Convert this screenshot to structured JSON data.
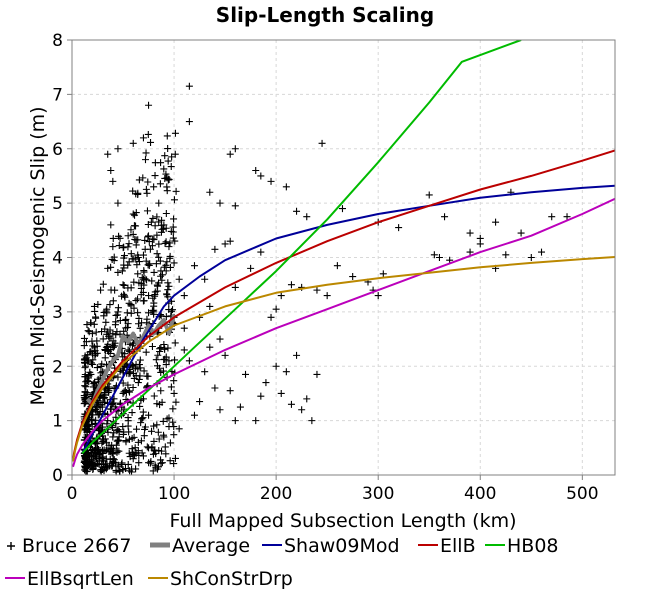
{
  "chart_data": {
    "type": "scatter",
    "title": "Slip-Length Scaling",
    "xlabel": "Full Mapped Subsection Length (km)",
    "ylabel": "Mean Mid-Seismogenic Slip (m)",
    "xlim": [
      0,
      532
    ],
    "ylim": [
      0,
      8
    ],
    "x_ticks": [
      "0",
      "100",
      "200",
      "300",
      "400",
      "500"
    ],
    "y_ticks": [
      "0",
      "1",
      "2",
      "3",
      "4",
      "5",
      "6",
      "7",
      "8"
    ],
    "grid": true,
    "legend_position": "bottom",
    "series": [
      {
        "name": "Bruce 2667",
        "kind": "scatter",
        "marker": "plus",
        "color": "#000000",
        "cluster_note": "dense cloud of 2667 points concentrated at 15-100 km length and 0.2-5 m slip",
        "points": [
          [
            75,
            6.8
          ],
          [
            115,
            7.15
          ],
          [
            115,
            6.5
          ],
          [
            160,
            6.0
          ],
          [
            155,
            5.9
          ],
          [
            245,
            6.1
          ],
          [
            180,
            5.6
          ],
          [
            185,
            5.5
          ],
          [
            195,
            5.4
          ],
          [
            210,
            5.3
          ],
          [
            135,
            5.2
          ],
          [
            145,
            5.0
          ],
          [
            160,
            4.95
          ],
          [
            230,
            4.75
          ],
          [
            220,
            4.85
          ],
          [
            265,
            4.9
          ],
          [
            300,
            4.65
          ],
          [
            320,
            4.55
          ],
          [
            350,
            5.15
          ],
          [
            430,
            5.2
          ],
          [
            365,
            4.75
          ],
          [
            390,
            4.45
          ],
          [
            415,
            4.65
          ],
          [
            440,
            4.45
          ],
          [
            470,
            4.75
          ],
          [
            485,
            4.75
          ],
          [
            400,
            4.35
          ],
          [
            415,
            3.8
          ],
          [
            425,
            4.05
          ],
          [
            450,
            4.0
          ],
          [
            460,
            4.1
          ],
          [
            355,
            4.05
          ],
          [
            360,
            4.0
          ],
          [
            390,
            4.1
          ],
          [
            400,
            4.25
          ],
          [
            370,
            3.95
          ],
          [
            275,
            3.65
          ],
          [
            290,
            3.55
          ],
          [
            295,
            3.4
          ],
          [
            300,
            3.3
          ],
          [
            305,
            3.7
          ],
          [
            260,
            3.85
          ],
          [
            225,
            3.45
          ],
          [
            240,
            3.4
          ],
          [
            250,
            3.3
          ],
          [
            200,
            3.05
          ],
          [
            205,
            3.3
          ],
          [
            195,
            2.9
          ],
          [
            215,
            3.5
          ],
          [
            185,
            4.1
          ],
          [
            175,
            3.8
          ],
          [
            155,
            4.3
          ],
          [
            150,
            4.25
          ],
          [
            140,
            4.15
          ],
          [
            130,
            3.6
          ],
          [
            120,
            3.85
          ],
          [
            160,
            3.45
          ],
          [
            145,
            2.5
          ],
          [
            135,
            2.35
          ],
          [
            150,
            2.2
          ],
          [
            130,
            1.9
          ],
          [
            140,
            1.6
          ],
          [
            155,
            1.55
          ],
          [
            165,
            1.25
          ],
          [
            160,
            1.0
          ],
          [
            170,
            1.85
          ],
          [
            145,
            1.2
          ],
          [
            125,
            1.35
          ],
          [
            120,
            1.1
          ],
          [
            110,
            2.3
          ],
          [
            115,
            2.1
          ],
          [
            100,
            1.5
          ],
          [
            95,
            1.05
          ],
          [
            105,
            0.85
          ],
          [
            90,
            0.7
          ],
          [
            85,
            0.45
          ],
          [
            75,
            0.5
          ],
          [
            70,
            0.35
          ],
          [
            60,
            0.3
          ],
          [
            50,
            0.1
          ],
          [
            40,
            0.25
          ],
          [
            30,
            0.3
          ],
          [
            25,
            0.5
          ],
          [
            18,
            0.6
          ],
          [
            15,
            0.9
          ],
          [
            20,
            1.2
          ],
          [
            25,
            1.5
          ],
          [
            30,
            1.9
          ],
          [
            35,
            2.3
          ],
          [
            20,
            2.6
          ],
          [
            22,
            3.1
          ],
          [
            28,
            3.4
          ],
          [
            35,
            3.8
          ],
          [
            40,
            4.2
          ],
          [
            38,
            4.6
          ],
          [
            45,
            5.0
          ],
          [
            40,
            5.4
          ],
          [
            38,
            5.6
          ],
          [
            35,
            5.9
          ],
          [
            45,
            6.0
          ],
          [
            60,
            6.1
          ],
          [
            70,
            6.2
          ],
          [
            72,
            5.8
          ],
          [
            80,
            5.3
          ],
          [
            85,
            5.0
          ],
          [
            90,
            4.6
          ],
          [
            95,
            4.2
          ],
          [
            100,
            3.9
          ],
          [
            105,
            3.6
          ],
          [
            110,
            3.3
          ],
          [
            60,
            4.8
          ],
          [
            55,
            4.4
          ],
          [
            65,
            4.0
          ],
          [
            70,
            3.6
          ],
          [
            75,
            3.3
          ],
          [
            80,
            3.0
          ],
          [
            85,
            2.7
          ],
          [
            90,
            2.4
          ],
          [
            95,
            2.1
          ],
          [
            50,
            3.5
          ],
          [
            45,
            3.0
          ],
          [
            40,
            2.6
          ],
          [
            55,
            2.3
          ],
          [
            60,
            2.0
          ],
          [
            65,
            1.7
          ],
          [
            70,
            1.4
          ],
          [
            75,
            1.1
          ],
          [
            80,
            0.9
          ],
          [
            50,
            1.5
          ],
          [
            45,
            1.8
          ],
          [
            35,
            1.0
          ],
          [
            40,
            0.7
          ],
          [
            30,
            0.8
          ],
          [
            55,
            0.9
          ],
          [
            65,
            0.6
          ],
          [
            100,
            2.9
          ],
          [
            110,
            2.7
          ],
          [
            125,
            2.9
          ],
          [
            135,
            3.1
          ],
          [
            205,
            1.5
          ],
          [
            215,
            1.3
          ],
          [
            225,
            1.2
          ],
          [
            230,
            1.4
          ],
          [
            210,
            1.9
          ],
          [
            200,
            2.0
          ],
          [
            220,
            2.2
          ],
          [
            235,
            1.0
          ],
          [
            240,
            1.85
          ],
          [
            185,
            1.45
          ],
          [
            180,
            1.0
          ],
          [
            190,
            1.7
          ]
        ]
      },
      {
        "name": "Average",
        "kind": "line",
        "color": "#808080",
        "points": [
          [
            15,
            1.4
          ],
          [
            20,
            1.3
          ],
          [
            25,
            1.55
          ],
          [
            30,
            1.75
          ],
          [
            35,
            1.95
          ],
          [
            40,
            2.1
          ],
          [
            45,
            2.2
          ],
          [
            50,
            2.55
          ],
          [
            55,
            2.45
          ],
          [
            60,
            2.6
          ],
          [
            65,
            2.4
          ],
          [
            70,
            2.55
          ],
          [
            75,
            2.75
          ],
          [
            80,
            2.6
          ],
          [
            85,
            2.75
          ],
          [
            90,
            2.85
          ],
          [
            95,
            2.6
          ],
          [
            100,
            2.95
          ]
        ]
      },
      {
        "name": "Shaw09Mod",
        "kind": "line",
        "color": "#000099",
        "points": [
          [
            10,
            0.4
          ],
          [
            20,
            0.75
          ],
          [
            30,
            1.1
          ],
          [
            40,
            1.45
          ],
          [
            50,
            1.8
          ],
          [
            60,
            2.15
          ],
          [
            70,
            2.5
          ],
          [
            80,
            2.8
          ],
          [
            90,
            3.1
          ],
          [
            100,
            3.3
          ],
          [
            125,
            3.65
          ],
          [
            150,
            3.95
          ],
          [
            175,
            4.15
          ],
          [
            200,
            4.35
          ],
          [
            250,
            4.6
          ],
          [
            300,
            4.8
          ],
          [
            350,
            4.95
          ],
          [
            400,
            5.1
          ],
          [
            450,
            5.2
          ],
          [
            500,
            5.28
          ],
          [
            532,
            5.32
          ]
        ]
      },
      {
        "name": "EllB",
        "kind": "line",
        "color": "#bb0000",
        "points": [
          [
            1,
            0.25
          ],
          [
            2,
            0.4
          ],
          [
            5,
            0.65
          ],
          [
            10,
            0.95
          ],
          [
            20,
            1.35
          ],
          [
            30,
            1.65
          ],
          [
            50,
            2.1
          ],
          [
            75,
            2.55
          ],
          [
            100,
            2.9
          ],
          [
            150,
            3.45
          ],
          [
            200,
            3.9
          ],
          [
            250,
            4.3
          ],
          [
            300,
            4.65
          ],
          [
            350,
            4.95
          ],
          [
            400,
            5.25
          ],
          [
            450,
            5.5
          ],
          [
            500,
            5.78
          ],
          [
            532,
            5.97
          ]
        ]
      },
      {
        "name": "HB08",
        "kind": "line",
        "color": "#00bb00",
        "points": [
          [
            10,
            0.4
          ],
          [
            20,
            0.6
          ],
          [
            40,
            0.95
          ],
          [
            60,
            1.3
          ],
          [
            80,
            1.65
          ],
          [
            100,
            2.0
          ],
          [
            120,
            2.35
          ],
          [
            140,
            2.7
          ],
          [
            160,
            3.05
          ],
          [
            180,
            3.4
          ],
          [
            200,
            3.75
          ],
          [
            250,
            4.7
          ],
          [
            300,
            5.75
          ],
          [
            350,
            6.85
          ],
          [
            382,
            7.6
          ],
          [
            440,
            8.0
          ]
        ]
      },
      {
        "name": "EllBsqrtLen",
        "kind": "line",
        "color": "#bb00bb",
        "points": [
          [
            1,
            0.15
          ],
          [
            3,
            0.28
          ],
          [
            5,
            0.38
          ],
          [
            10,
            0.55
          ],
          [
            20,
            0.8
          ],
          [
            30,
            1.0
          ],
          [
            50,
            1.3
          ],
          [
            75,
            1.6
          ],
          [
            100,
            1.85
          ],
          [
            150,
            2.3
          ],
          [
            200,
            2.7
          ],
          [
            250,
            3.05
          ],
          [
            300,
            3.4
          ],
          [
            350,
            3.75
          ],
          [
            400,
            4.1
          ],
          [
            450,
            4.4
          ],
          [
            500,
            4.8
          ],
          [
            532,
            5.08
          ]
        ]
      },
      {
        "name": "ShConStrDrp",
        "kind": "line",
        "color": "#bb8800",
        "points": [
          [
            1,
            0.25
          ],
          [
            3,
            0.45
          ],
          [
            5,
            0.6
          ],
          [
            10,
            0.9
          ],
          [
            20,
            1.3
          ],
          [
            30,
            1.6
          ],
          [
            50,
            2.05
          ],
          [
            75,
            2.45
          ],
          [
            100,
            2.75
          ],
          [
            150,
            3.1
          ],
          [
            200,
            3.35
          ],
          [
            250,
            3.5
          ],
          [
            300,
            3.62
          ],
          [
            350,
            3.72
          ],
          [
            400,
            3.82
          ],
          [
            450,
            3.9
          ],
          [
            500,
            3.97
          ],
          [
            532,
            4.01
          ]
        ]
      }
    ]
  }
}
